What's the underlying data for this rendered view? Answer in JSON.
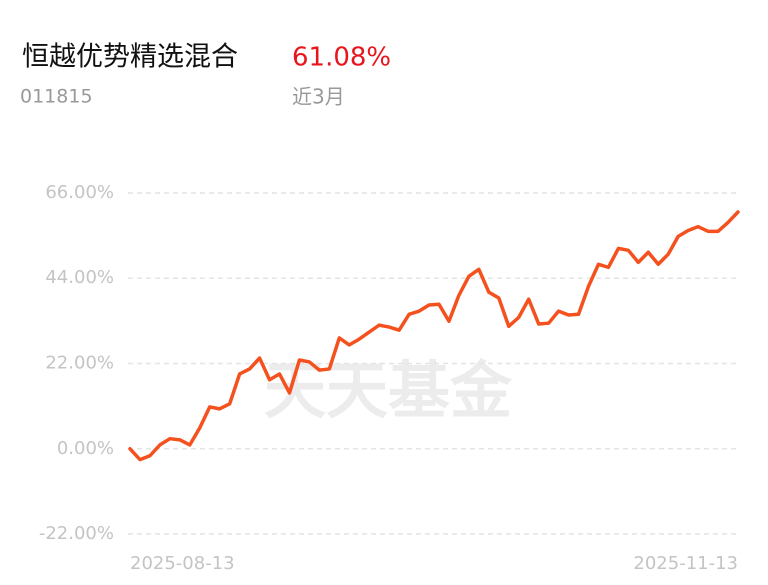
{
  "fund": {
    "name": "恒越优势精选混合",
    "return": "61.08%",
    "code": "011815",
    "period": "近3月"
  },
  "chart_data": {
    "type": "line",
    "watermark": "天天基金",
    "categories": [
      "2025-08-13",
      null,
      null,
      null,
      null,
      null,
      null,
      null,
      null,
      null,
      null,
      null,
      null,
      null,
      null,
      null,
      null,
      null,
      null,
      null,
      null,
      null,
      null,
      null,
      null,
      null,
      null,
      null,
      null,
      null,
      null,
      null,
      null,
      null,
      null,
      null,
      null,
      null,
      null,
      null,
      null,
      null,
      null,
      null,
      null,
      null,
      null,
      null,
      null,
      null,
      null,
      null,
      null,
      null,
      null,
      null,
      null,
      null,
      null,
      null,
      null,
      "2025-11-13"
    ],
    "series": [
      {
        "name": "恒越优势精选混合",
        "color": "#f4511e",
        "values": [
          0,
          -2.8,
          -1.8,
          1.0,
          2.6,
          2.3,
          1.0,
          5.4,
          10.8,
          10.3,
          11.6,
          19.3,
          20.6,
          23.4,
          17.8,
          19.3,
          14.4,
          22.9,
          22.4,
          20.3,
          20.6,
          28.6,
          26.8,
          28.3,
          30.1,
          31.9,
          31.4,
          30.6,
          34.7,
          35.5,
          37.1,
          37.3,
          32.9,
          39.6,
          44.5,
          46.3,
          40.4,
          38.9,
          31.6,
          33.9,
          38.6,
          32.2,
          32.4,
          35.5,
          34.5,
          34.7,
          41.9,
          47.6,
          46.8,
          51.7,
          51.2,
          48.1,
          50.7,
          47.6,
          50.2,
          54.8,
          56.3,
          57.3,
          56.1,
          56.1,
          58.4,
          61.08
        ]
      }
    ],
    "ylim": [
      -24,
      68
    ],
    "yticks": [
      {
        "value": 66,
        "label": "66.00%"
      },
      {
        "value": 44,
        "label": "44.00%"
      },
      {
        "value": 22,
        "label": "22.00%"
      },
      {
        "value": 0,
        "label": "0.00%"
      },
      {
        "value": -22,
        "label": "-22.00%"
      }
    ],
    "grid": true
  }
}
